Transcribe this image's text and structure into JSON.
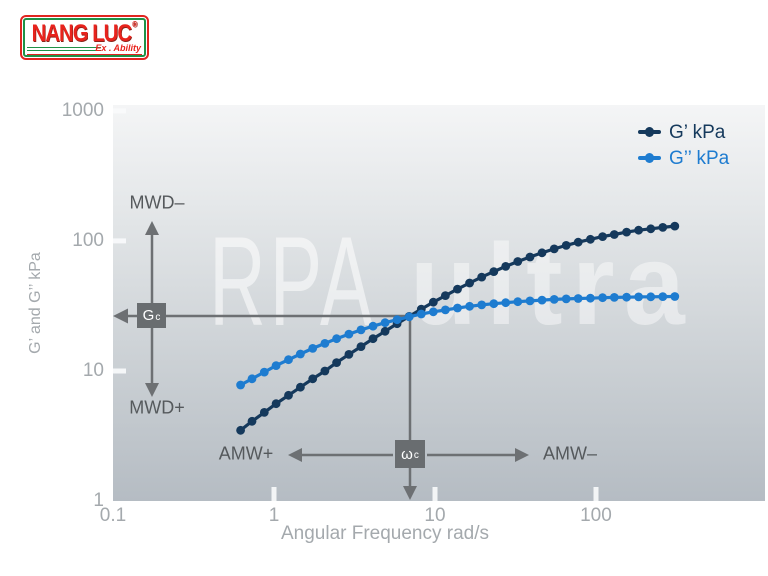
{
  "logo": {
    "brand": "NANG LUC",
    "registered": "®",
    "tagline": "Ex . Ability"
  },
  "watermark": {
    "line1": "RPA",
    "line2": "ultra"
  },
  "legend": {
    "items": [
      {
        "label": "G’ kPa",
        "color": "#15395c"
      },
      {
        "label": "G’’ kPa",
        "color": "#1e7cd0"
      }
    ]
  },
  "annotations": {
    "mwd_minus": "MWD–",
    "mwd_plus": "MWD+",
    "amw_plus": "AMW+",
    "amw_minus": "AMW–",
    "gc": {
      "main": "G",
      "sub": "c"
    },
    "wc": {
      "main": "ω",
      "sub": "c"
    }
  },
  "colors": {
    "g_prime": "#15395c",
    "g_double_prime": "#1e7cd0",
    "annotation_gray": "#6d7073",
    "tick_gray": "#a4a9ad"
  },
  "chart_data": {
    "type": "line",
    "title": "",
    "xlabel": "Angular Frequency rad/s",
    "ylabel": "G’ and G’’ kPa",
    "x_scale": "log",
    "y_scale": "log",
    "xlim": [
      0.1,
      1122
    ],
    "ylim": [
      1,
      1110
    ],
    "grid": false,
    "legend_position": "top-right",
    "x_ticks": {
      "values": [
        0.1,
        1,
        10,
        100
      ],
      "labels": [
        "0.1",
        "1",
        "10",
        "100"
      ]
    },
    "y_ticks": {
      "values": [
        1,
        10,
        100,
        1000
      ],
      "labels": [
        "1",
        "10",
        "100",
        "1000"
      ]
    },
    "x": [
      0.62,
      0.73,
      0.87,
      1.03,
      1.23,
      1.46,
      1.74,
      2.07,
      2.45,
      2.92,
      3.47,
      4.12,
      4.9,
      5.82,
      6.92,
      8.22,
      9.77,
      11.6,
      13.8,
      16.4,
      19.5,
      23.2,
      27.5,
      32.7,
      38.9,
      46.2,
      55.0,
      65.3,
      77.6,
      92.3,
      110,
      130,
      155,
      184,
      219,
      260,
      309
    ],
    "series": [
      {
        "name": "G’ kPa",
        "color": "#15395c",
        "values": [
          3.5,
          4.1,
          4.8,
          5.6,
          6.5,
          7.5,
          8.7,
          10.0,
          11.6,
          13.4,
          15.4,
          17.7,
          20.2,
          23.1,
          26.3,
          29.9,
          33.8,
          38.0,
          42.6,
          47.5,
          52.7,
          58.1,
          63.7,
          69.5,
          75.3,
          81.1,
          86.8,
          92.4,
          97.8,
          103,
          108,
          112,
          117,
          121,
          124,
          127,
          130
        ]
      },
      {
        "name": "G’’ kPa",
        "color": "#1e7cd0",
        "values": [
          7.8,
          8.7,
          9.8,
          11.0,
          12.2,
          13.5,
          14.9,
          16.3,
          17.7,
          19.2,
          20.7,
          22.1,
          23.5,
          24.8,
          26.1,
          27.4,
          28.5,
          29.5,
          30.5,
          31.4,
          32.2,
          32.9,
          33.5,
          34.1,
          34.6,
          35.1,
          35.5,
          35.8,
          36.1,
          36.3,
          36.6,
          36.8,
          36.9,
          37.1,
          37.2,
          37.3,
          37.4
        ]
      }
    ],
    "crossover": {
      "omega_c_rad_s": 6.9,
      "g_c_kpa": 26
    }
  }
}
